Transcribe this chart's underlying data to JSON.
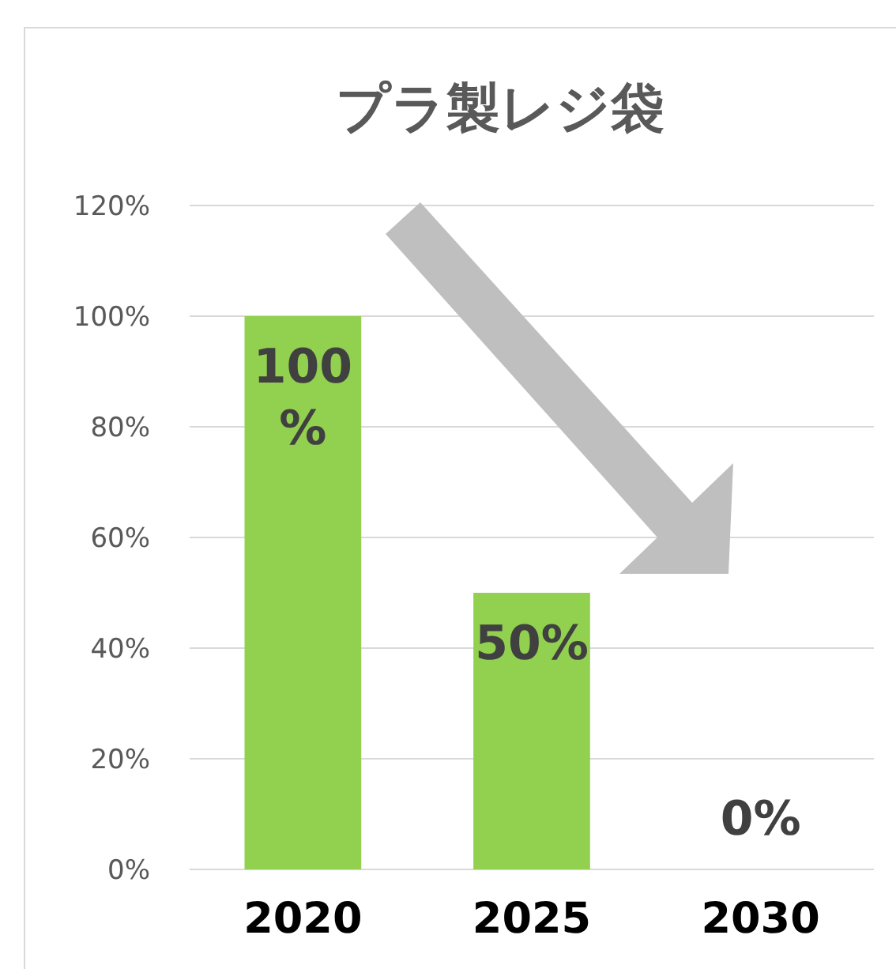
{
  "chart_data": {
    "type": "bar",
    "title": "プラ製レジ袋",
    "categories": [
      "2020",
      "2025",
      "2030"
    ],
    "values": [
      100,
      50,
      0
    ],
    "color": "#92d050",
    "value_labels": [
      "100%",
      "50%",
      "0%"
    ],
    "ylim": [
      0,
      120
    ],
    "yticks": [
      {
        "value": 0,
        "label": "0%"
      },
      {
        "value": 20,
        "label": "20%"
      },
      {
        "value": 40,
        "label": "40%"
      },
      {
        "value": 60,
        "label": "60%"
      },
      {
        "value": 80,
        "label": "80%"
      },
      {
        "value": 100,
        "label": "100%"
      },
      {
        "value": 120,
        "label": "120%"
      }
    ],
    "grid": "y"
  }
}
